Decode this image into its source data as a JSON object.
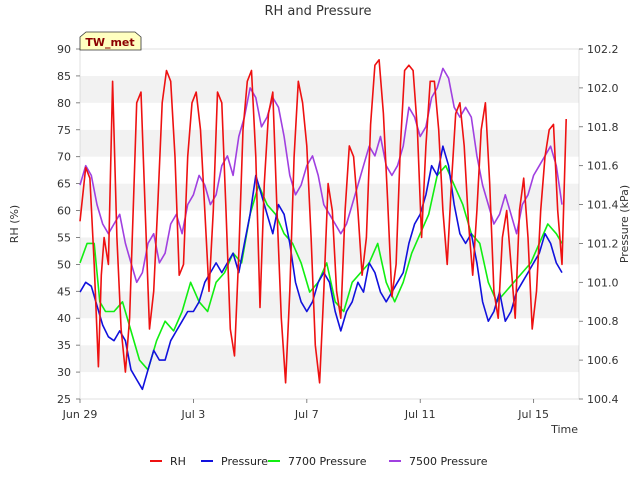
{
  "chart_data": {
    "type": "line",
    "title": "RH and Pressure",
    "badge": "TW_met",
    "xlabel": "Time",
    "ylabel_left": "RH (%)",
    "ylabel_right": "Pressure (kPa)",
    "x_ticks": [
      "Jun 29",
      "Jul 3",
      "Jul 7",
      "Jul 11",
      "Jul 15"
    ],
    "x_tick_days": [
      0,
      4,
      8,
      12,
      16
    ],
    "x_range_days": [
      0,
      17.6
    ],
    "ylim_left": [
      25,
      90
    ],
    "yticks_left": [
      25,
      30,
      35,
      40,
      45,
      50,
      55,
      60,
      65,
      70,
      75,
      80,
      85,
      90
    ],
    "ylim_right": [
      100.4,
      102.2
    ],
    "yticks_right": [
      100.4,
      100.6,
      100.8,
      101.0,
      101.2,
      101.4,
      101.6,
      101.8,
      102.0,
      102.2
    ],
    "grid": "horizontal bands",
    "legend_position": "bottom",
    "series": [
      {
        "name": "RH",
        "axis": "left",
        "color": "#ee1111",
        "x": [
          0.0,
          0.2,
          0.35,
          0.5,
          0.65,
          0.75,
          0.85,
          1.0,
          1.15,
          1.3,
          1.45,
          1.6,
          1.75,
          1.9,
          2.0,
          2.15,
          2.3,
          2.45,
          2.6,
          2.75,
          2.9,
          3.05,
          3.2,
          3.35,
          3.5,
          3.65,
          3.8,
          3.95,
          4.1,
          4.25,
          4.4,
          4.55,
          4.7,
          4.85,
          5.0,
          5.15,
          5.3,
          5.45,
          5.6,
          5.75,
          5.9,
          6.05,
          6.2,
          6.35,
          6.5,
          6.65,
          6.8,
          6.95,
          7.1,
          7.25,
          7.4,
          7.55,
          7.7,
          7.85,
          8.0,
          8.15,
          8.3,
          8.45,
          8.6,
          8.75,
          8.9,
          9.05,
          9.2,
          9.35,
          9.5,
          9.65,
          9.8,
          9.95,
          10.1,
          10.25,
          10.4,
          10.55,
          10.7,
          10.85,
          11.0,
          11.15,
          11.3,
          11.45,
          11.6,
          11.75,
          11.9,
          12.05,
          12.2,
          12.35,
          12.5,
          12.65,
          12.8,
          12.95,
          13.1,
          13.25,
          13.4,
          13.55,
          13.7,
          13.85,
          14.0,
          14.15,
          14.3,
          14.45,
          14.6,
          14.75,
          14.9,
          15.05,
          15.2,
          15.35,
          15.5,
          15.65,
          15.8,
          15.95,
          16.1,
          16.25,
          16.4,
          16.55,
          16.7,
          16.85,
          17.0,
          17.15
        ],
        "values": [
          58,
          68,
          66,
          50,
          31,
          48,
          55,
          50,
          84,
          55,
          38,
          30,
          40,
          64,
          80,
          82,
          60,
          38,
          45,
          62,
          80,
          86,
          84,
          70,
          48,
          50,
          70,
          80,
          82,
          75,
          60,
          45,
          60,
          82,
          80,
          60,
          38,
          33,
          52,
          75,
          84,
          86,
          70,
          42,
          65,
          78,
          82,
          60,
          40,
          28,
          45,
          70,
          84,
          80,
          72,
          55,
          35,
          28,
          45,
          65,
          60,
          45,
          40,
          60,
          72,
          70,
          60,
          48,
          55,
          76,
          87,
          88,
          78,
          62,
          44,
          50,
          72,
          86,
          87,
          86,
          75,
          55,
          72,
          84,
          84,
          75,
          60,
          50,
          65,
          78,
          80,
          72,
          58,
          48,
          60,
          75,
          80,
          65,
          45,
          40,
          55,
          60,
          50,
          40,
          60,
          66,
          55,
          38,
          45,
          60,
          70,
          75,
          76,
          60,
          50,
          77
        ]
      },
      {
        "name": "Pressure",
        "axis": "right",
        "color": "#1111dd",
        "x": [
          0.0,
          0.2,
          0.4,
          0.6,
          0.8,
          1.0,
          1.2,
          1.4,
          1.6,
          1.8,
          2.0,
          2.2,
          2.4,
          2.6,
          2.8,
          3.0,
          3.2,
          3.4,
          3.6,
          3.8,
          4.0,
          4.2,
          4.4,
          4.6,
          4.8,
          5.0,
          5.2,
          5.4,
          5.6,
          5.8,
          6.0,
          6.2,
          6.4,
          6.6,
          6.8,
          7.0,
          7.2,
          7.4,
          7.6,
          7.8,
          8.0,
          8.2,
          8.4,
          8.6,
          8.8,
          9.0,
          9.2,
          9.4,
          9.6,
          9.8,
          10.0,
          10.2,
          10.4,
          10.6,
          10.8,
          11.0,
          11.2,
          11.4,
          11.6,
          11.8,
          12.0,
          12.2,
          12.4,
          12.6,
          12.8,
          13.0,
          13.2,
          13.4,
          13.6,
          13.8,
          14.0,
          14.2,
          14.4,
          14.6,
          14.8,
          15.0,
          15.2,
          15.4,
          15.6,
          15.8,
          16.0,
          16.2,
          16.4,
          16.6,
          16.8,
          17.0
        ],
        "values": [
          100.95,
          101.0,
          100.98,
          100.88,
          100.78,
          100.72,
          100.7,
          100.75,
          100.7,
          100.55,
          100.5,
          100.45,
          100.55,
          100.65,
          100.6,
          100.6,
          100.7,
          100.75,
          100.8,
          100.85,
          100.85,
          100.9,
          101.0,
          101.05,
          101.1,
          101.05,
          101.1,
          101.15,
          101.05,
          101.2,
          101.35,
          101.55,
          101.45,
          101.35,
          101.25,
          101.4,
          101.35,
          101.2,
          101.0,
          100.9,
          100.85,
          100.9,
          101.0,
          101.05,
          101.0,
          100.85,
          100.75,
          100.85,
          100.9,
          101.0,
          100.95,
          101.1,
          101.05,
          100.95,
          100.9,
          100.95,
          101.0,
          101.05,
          101.2,
          101.3,
          101.35,
          101.45,
          101.6,
          101.55,
          101.7,
          101.6,
          101.4,
          101.25,
          101.2,
          101.25,
          101.1,
          100.9,
          100.8,
          100.85,
          100.95,
          100.8,
          100.85,
          100.95,
          101.0,
          101.05,
          101.1,
          101.15,
          101.25,
          101.2,
          101.1,
          101.05
        ]
      },
      {
        "name": "7700 Pressure",
        "axis": "right",
        "color": "#11ee11",
        "x": [
          0.0,
          0.25,
          0.5,
          0.7,
          0.9,
          1.2,
          1.5,
          1.8,
          2.1,
          2.4,
          2.7,
          3.0,
          3.3,
          3.6,
          3.9,
          4.2,
          4.5,
          4.8,
          5.1,
          5.4,
          5.7,
          6.0,
          6.3,
          6.6,
          6.9,
          7.2,
          7.5,
          7.8,
          8.1,
          8.4,
          8.7,
          9.0,
          9.3,
          9.6,
          9.9,
          10.2,
          10.5,
          10.8,
          11.1,
          11.4,
          11.7,
          12.0,
          12.3,
          12.6,
          12.9,
          13.2,
          13.5,
          13.8,
          14.1,
          14.4,
          14.7,
          15.0,
          15.3,
          15.6,
          15.9,
          16.2,
          16.5,
          16.8,
          17.0
        ],
        "values": [
          101.1,
          101.2,
          101.2,
          100.9,
          100.85,
          100.85,
          100.9,
          100.75,
          100.6,
          100.55,
          100.7,
          100.8,
          100.75,
          100.85,
          101.0,
          100.9,
          100.85,
          101.0,
          101.05,
          101.15,
          101.1,
          101.35,
          101.5,
          101.4,
          101.35,
          101.25,
          101.2,
          101.1,
          100.95,
          101.0,
          101.1,
          100.9,
          100.85,
          101.0,
          101.05,
          101.1,
          101.2,
          101.0,
          100.9,
          101.0,
          101.15,
          101.25,
          101.35,
          101.55,
          101.6,
          101.5,
          101.4,
          101.25,
          101.2,
          101.0,
          100.9,
          100.95,
          101.0,
          101.05,
          101.1,
          101.2,
          101.3,
          101.25,
          101.2
        ]
      },
      {
        "name": "7500 Pressure",
        "axis": "right",
        "color": "#a040e0",
        "x": [
          0.0,
          0.2,
          0.4,
          0.6,
          0.8,
          1.0,
          1.2,
          1.4,
          1.6,
          1.8,
          2.0,
          2.2,
          2.4,
          2.6,
          2.8,
          3.0,
          3.2,
          3.4,
          3.6,
          3.8,
          4.0,
          4.2,
          4.4,
          4.6,
          4.8,
          5.0,
          5.2,
          5.4,
          5.6,
          5.8,
          6.0,
          6.2,
          6.4,
          6.6,
          6.8,
          7.0,
          7.2,
          7.4,
          7.6,
          7.8,
          8.0,
          8.2,
          8.4,
          8.6,
          8.8,
          9.0,
          9.2,
          9.4,
          9.6,
          9.8,
          10.0,
          10.2,
          10.4,
          10.6,
          10.8,
          11.0,
          11.2,
          11.4,
          11.6,
          11.8,
          12.0,
          12.2,
          12.4,
          12.6,
          12.8,
          13.0,
          13.2,
          13.4,
          13.6,
          13.8,
          14.0,
          14.2,
          14.4,
          14.6,
          14.8,
          15.0,
          15.2,
          15.4,
          15.6,
          15.8,
          16.0,
          16.2,
          16.4,
          16.6,
          16.8,
          17.0
        ],
        "values": [
          101.5,
          101.6,
          101.55,
          101.4,
          101.3,
          101.25,
          101.3,
          101.35,
          101.2,
          101.1,
          101.0,
          101.05,
          101.2,
          101.25,
          101.1,
          101.15,
          101.3,
          101.35,
          101.25,
          101.4,
          101.45,
          101.55,
          101.5,
          101.4,
          101.45,
          101.6,
          101.65,
          101.55,
          101.75,
          101.85,
          102.0,
          101.95,
          101.8,
          101.85,
          101.95,
          101.9,
          101.75,
          101.55,
          101.45,
          101.5,
          101.6,
          101.65,
          101.55,
          101.4,
          101.35,
          101.3,
          101.25,
          101.3,
          101.4,
          101.5,
          101.6,
          101.7,
          101.65,
          101.75,
          101.6,
          101.55,
          101.6,
          101.7,
          101.9,
          101.85,
          101.75,
          101.8,
          101.95,
          102.0,
          102.1,
          102.05,
          101.9,
          101.85,
          101.9,
          101.85,
          101.65,
          101.5,
          101.4,
          101.3,
          101.35,
          101.45,
          101.35,
          101.25,
          101.4,
          101.45,
          101.55,
          101.6,
          101.65,
          101.7,
          101.6,
          101.4
        ]
      }
    ]
  }
}
